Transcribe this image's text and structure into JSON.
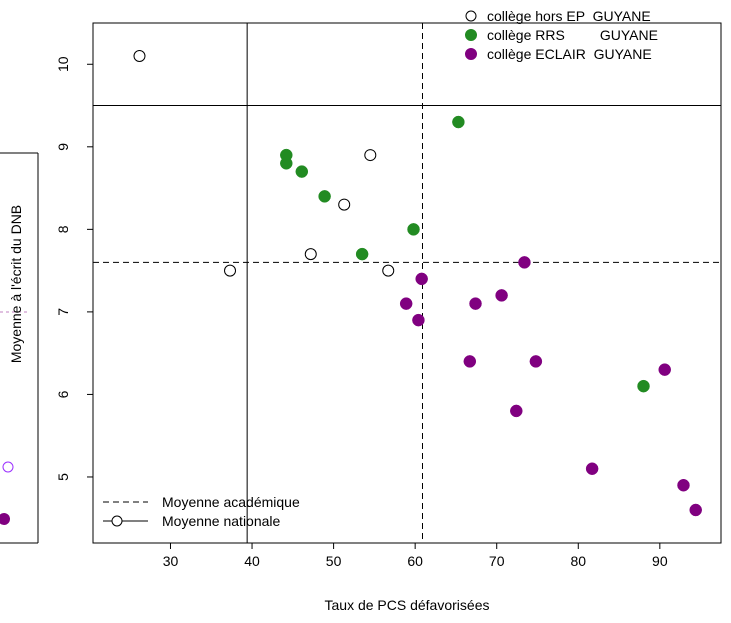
{
  "chart_data": {
    "type": "scatter",
    "xlabel": "Taux de PCS défavorisées",
    "ylabel": "Moyenne à l'écrit du DNB",
    "xlim": [
      20.5,
      97.5
    ],
    "ylim": [
      4.2,
      10.5
    ],
    "x_ticks": [
      30,
      40,
      50,
      60,
      70,
      80,
      90
    ],
    "y_ticks": [
      5,
      6,
      7,
      8,
      9,
      10
    ],
    "grid": false,
    "colors": {
      "hors_ep": "#000000",
      "rrs": "#228B22",
      "eclair": "#800080"
    },
    "series": [
      {
        "name": "collège hors EP  GUYANE",
        "marker": "open-circle",
        "points": [
          {
            "x": 26.2,
            "y": 10.1
          },
          {
            "x": 37.3,
            "y": 7.5
          },
          {
            "x": 47.2,
            "y": 7.7
          },
          {
            "x": 51.3,
            "y": 8.3
          },
          {
            "x": 54.5,
            "y": 8.9
          },
          {
            "x": 56.7,
            "y": 7.5
          }
        ]
      },
      {
        "name": "collège RRS         GUYANE",
        "marker": "filled-circle",
        "points": [
          {
            "x": 44.2,
            "y": 8.9
          },
          {
            "x": 44.2,
            "y": 8.8
          },
          {
            "x": 46.1,
            "y": 8.7
          },
          {
            "x": 48.9,
            "y": 8.4
          },
          {
            "x": 53.5,
            "y": 7.7
          },
          {
            "x": 59.8,
            "y": 8.0
          },
          {
            "x": 65.3,
            "y": 9.3
          },
          {
            "x": 88.0,
            "y": 6.1
          }
        ]
      },
      {
        "name": "collège ECLAIR  GUYANE",
        "marker": "filled-circle",
        "points": [
          {
            "x": 58.9,
            "y": 7.1
          },
          {
            "x": 60.4,
            "y": 6.9
          },
          {
            "x": 60.8,
            "y": 7.4
          },
          {
            "x": 66.7,
            "y": 6.4
          },
          {
            "x": 67.4,
            "y": 7.1
          },
          {
            "x": 70.6,
            "y": 7.2
          },
          {
            "x": 72.4,
            "y": 5.8
          },
          {
            "x": 73.4,
            "y": 7.6
          },
          {
            "x": 74.8,
            "y": 6.4
          },
          {
            "x": 81.7,
            "y": 5.1
          },
          {
            "x": 90.6,
            "y": 6.3
          },
          {
            "x": 92.9,
            "y": 4.9
          },
          {
            "x": 94.4,
            "y": 4.6
          }
        ]
      }
    ],
    "reference_lines": [
      {
        "name": "Moyenne académique",
        "style": "dashed",
        "x": 60.9,
        "y": 7.6
      },
      {
        "name": "Moyenne nationale",
        "style": "solid",
        "x": 39.4,
        "y": 9.5
      }
    ],
    "legend_placement": "top-right"
  }
}
